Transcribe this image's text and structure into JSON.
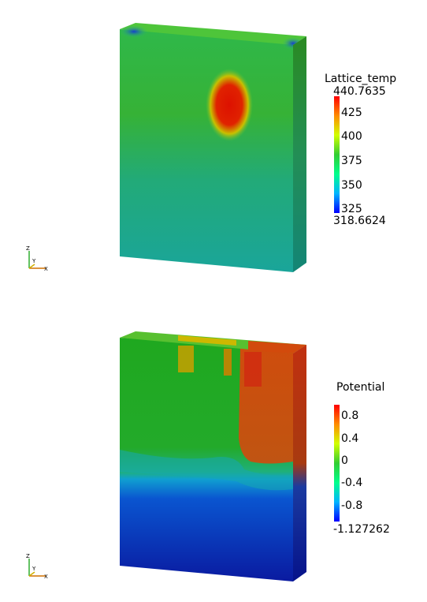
{
  "plots": [
    {
      "field_name": "Lattice_temp",
      "range_max": "440.7635",
      "range_min": "318.6624",
      "ticks": [
        "425",
        "400",
        "375",
        "350",
        "325"
      ],
      "colormap": [
        "#0000ff",
        "#00b4ff",
        "#00ff8c",
        "#32cd32",
        "#d2ff00",
        "#ff8c00",
        "#ff0000"
      ]
    },
    {
      "field_name": "Potential",
      "range_max": "",
      "range_min": "-1.127262",
      "ticks": [
        "0.8",
        "0.4",
        "0",
        "-0.4",
        "-0.8"
      ],
      "colormap": [
        "#0000ff",
        "#00b4ff",
        "#00ff8c",
        "#32cd32",
        "#d2ff00",
        "#ff8c00",
        "#ff0000"
      ]
    }
  ],
  "axes": {
    "z": "Z",
    "y": "Y",
    "x": "X"
  }
}
